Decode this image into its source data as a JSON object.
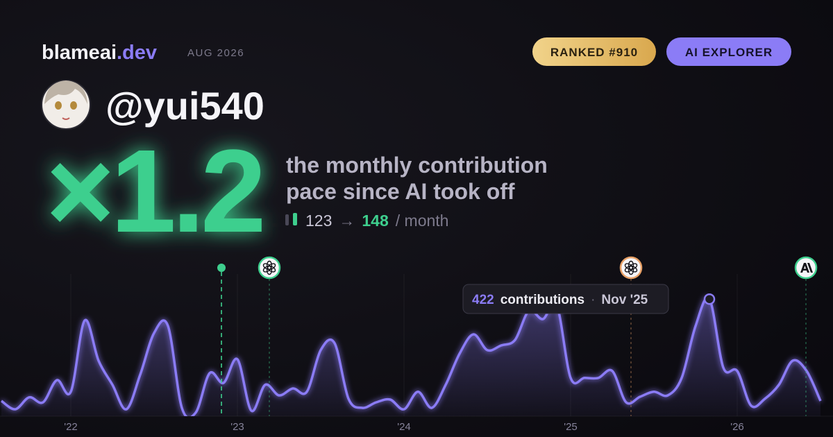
{
  "header": {
    "brand": "blameai",
    "brand_tld": ".dev",
    "date": "AUG 2026",
    "badges": [
      "RANKED #910",
      "AI EXPLORER"
    ]
  },
  "user": {
    "handle": "@yui540"
  },
  "headline": {
    "multiplier": "×1.2",
    "description": [
      "the monthly contribution",
      "pace since AI took off"
    ],
    "before": 123,
    "arrow": "→",
    "after": 148,
    "unit": "/ month"
  },
  "chart_data": {
    "type": "area",
    "categories": [
      null,
      null,
      null,
      null,
      null,
      "'22",
      null,
      null,
      null,
      null,
      null,
      null,
      null,
      null,
      null,
      null,
      null,
      "'23",
      null,
      null,
      null,
      null,
      null,
      null,
      null,
      null,
      null,
      null,
      null,
      "'24",
      null,
      null,
      null,
      null,
      null,
      null,
      null,
      null,
      null,
      null,
      null,
      "'25",
      null,
      null,
      null,
      null,
      null,
      null,
      null,
      null,
      null,
      null,
      null,
      "'26",
      null,
      null,
      null,
      null,
      null,
      null
    ],
    "values": [
      55,
      25,
      68,
      50,
      130,
      88,
      345,
      200,
      113,
      25,
      150,
      300,
      325,
      30,
      13,
      155,
      120,
      205,
      20,
      113,
      75,
      100,
      88,
      238,
      263,
      63,
      30,
      50,
      60,
      25,
      88,
      30,
      113,
      225,
      295,
      238,
      255,
      275,
      380,
      350,
      400,
      138,
      138,
      138,
      163,
      50,
      70,
      88,
      75,
      138,
      325,
      422,
      175,
      163,
      38,
      63,
      113,
      200,
      163,
      55
    ],
    "color": "#8b7cf6",
    "ylim": [
      0,
      500
    ],
    "events": [
      {
        "x": 15.85,
        "icon": "dot",
        "color": "#3ecf8e"
      },
      {
        "x": 19.3,
        "icon": "openai",
        "color": "#3ecf8e"
      },
      {
        "x": 45.35,
        "icon": "openai",
        "color": "#e8a066"
      },
      {
        "x": 57.95,
        "icon": "anthropic",
        "color": "#3ecf8e"
      }
    ],
    "tooltip": {
      "index": 51,
      "label": "contributions",
      "separator": "·",
      "date": "Nov '25"
    }
  }
}
